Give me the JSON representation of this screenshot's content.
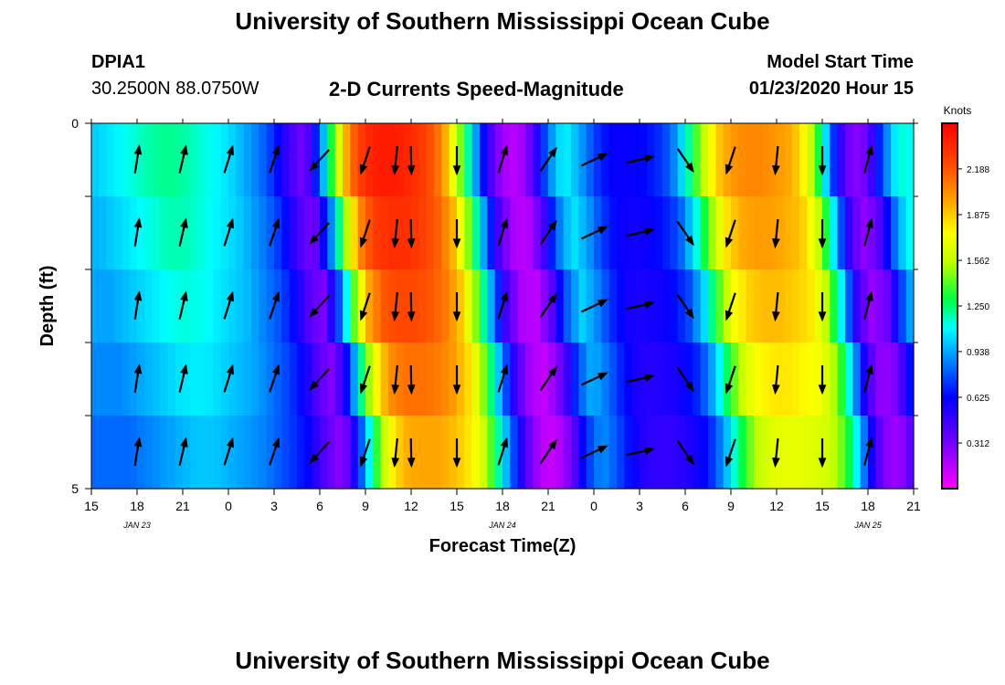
{
  "header": {
    "title": "University of Southern Mississippi Ocean Cube",
    "station_id": "DPIA1",
    "station_coords": "30.2500N 88.0750W",
    "chart_heading": "2-D Currents Speed-Magnitude",
    "model_start_label": "Model Start Time",
    "model_start_value": "01/23/2020 Hour 15"
  },
  "footer": {
    "title": "University of Southern Mississippi Ocean Cube"
  },
  "chart_data": {
    "type": "heatmap",
    "title": "2-D Currents Speed-Magnitude",
    "xlabel": "Forecast Time(Z)",
    "ylabel": "Depth (ft)",
    "x_hours_from_start": [
      0,
      54
    ],
    "x_tick_labels": [
      "15",
      "18",
      "21",
      "0",
      "3",
      "6",
      "9",
      "12",
      "15",
      "18",
      "21",
      "0",
      "3",
      "6",
      "9",
      "12",
      "15",
      "18",
      "21"
    ],
    "date_labels": [
      "JAN 23",
      "JAN 24",
      "JAN 25"
    ],
    "y_tick_labels": [
      "0",
      "5"
    ],
    "ylim": [
      0,
      5
    ],
    "depth_rows": 5,
    "colorbar": {
      "unit": "Knots",
      "range": [
        0.0,
        2.5
      ],
      "ticks": [
        "2.188",
        "1.875",
        "1.562",
        "1.250",
        "0.938",
        "0.625",
        "0.312"
      ]
    },
    "speed_profile_surface": [
      1.0,
      1.05,
      1.1,
      1.15,
      1.2,
      1.22,
      1.2,
      1.15,
      1.1,
      1.05,
      0.95,
      0.85,
      0.7,
      0.45,
      0.3,
      0.8,
      1.5,
      2.1,
      2.35,
      2.4,
      2.4,
      2.35,
      2.25,
      2.05,
      1.6,
      1.05,
      0.5,
      0.2,
      0.15,
      0.4,
      0.85,
      1.1,
      0.95,
      0.75,
      0.62,
      0.6,
      0.62,
      0.68,
      0.8,
      1.1,
      1.5,
      1.85,
      2.0,
      2.05,
      2.05,
      2.0,
      1.95,
      1.7,
      1.2,
      0.55,
      0.25,
      0.35,
      0.8,
      1.15,
      1.1
    ],
    "depth_lag_hours": [
      0,
      0.6,
      1.2,
      1.9,
      2.5
    ],
    "depth_scale": [
      1.0,
      0.97,
      0.93,
      0.88,
      0.82
    ],
    "vectors": {
      "hours": [
        3,
        6,
        9,
        12,
        15,
        18,
        20,
        21,
        24,
        27,
        30,
        33,
        36,
        39,
        42,
        45,
        48,
        51
      ],
      "dx": [
        0.15,
        0.22,
        0.28,
        0.3,
        -0.55,
        -0.3,
        -0.1,
        0.02,
        0.0,
        0.3,
        0.55,
        0.85,
        0.9,
        0.55,
        -0.3,
        -0.1,
        0.0,
        0.25
      ],
      "dy": [
        0.95,
        0.95,
        0.9,
        0.9,
        -0.6,
        -0.9,
        -1.0,
        -1.0,
        -1.0,
        0.95,
        0.8,
        0.4,
        0.2,
        -0.8,
        -0.9,
        -1.0,
        -1.0,
        0.95
      ]
    }
  }
}
